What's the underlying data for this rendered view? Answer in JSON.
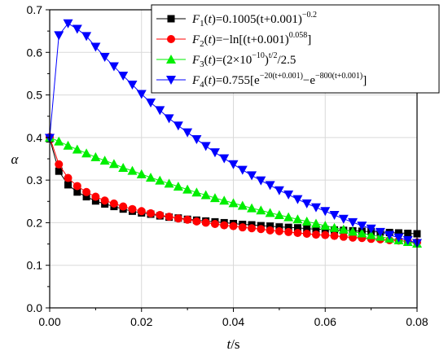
{
  "chart_data": {
    "type": "scatter",
    "xlabel": {
      "var": "t",
      "unit": "/s"
    },
    "ylabel": "α",
    "xlim": [
      0,
      0.08
    ],
    "ylim": [
      0,
      0.7
    ],
    "xticks": [
      "0.00",
      "0.02",
      "0.04",
      "0.06",
      "0.08"
    ],
    "yticks": [
      "0.0",
      "0.1",
      "0.2",
      "0.3",
      "0.4",
      "0.5",
      "0.6",
      "0.7"
    ],
    "grid": true,
    "legend_position": "top-right",
    "x": [
      0,
      0.002,
      0.004,
      0.006,
      0.008,
      0.01,
      0.012,
      0.014,
      0.016,
      0.018,
      0.02,
      0.022,
      0.024,
      0.026,
      0.028,
      0.03,
      0.032,
      0.034,
      0.036,
      0.038,
      0.04,
      0.042,
      0.044,
      0.046,
      0.048,
      0.05,
      0.052,
      0.054,
      0.056,
      0.058,
      0.06,
      0.062,
      0.064,
      0.066,
      0.068,
      0.07,
      0.072,
      0.074,
      0.076,
      0.078,
      0.08
    ],
    "series": [
      {
        "name": "F1(t)=0.1005(t+0.001)^-0.2",
        "legend_parts": {
          "fn": "F",
          "sub": "1",
          "arg": "(t)=0.1005(t+0.001)",
          "sup": "−0.2",
          "tail": ""
        },
        "color": "#000000",
        "marker": "square",
        "values": [
          0.397,
          0.321,
          0.289,
          0.272,
          0.261,
          0.251,
          0.244,
          0.238,
          0.232,
          0.227,
          0.223,
          0.22,
          0.216,
          0.213,
          0.211,
          0.208,
          0.206,
          0.204,
          0.202,
          0.2,
          0.198,
          0.196,
          0.195,
          0.193,
          0.192,
          0.19,
          0.189,
          0.188,
          0.186,
          0.185,
          0.184,
          0.183,
          0.182,
          0.181,
          0.18,
          0.179,
          0.178,
          0.177,
          0.176,
          0.175,
          0.174
        ]
      },
      {
        "name": "F2(t)=−ln[(t+0.001)^0.058]",
        "legend_parts": {
          "fn": "F",
          "sub": "2",
          "arg": "(t)=−ln[(t+0.001)",
          "sup": "0.058",
          "tail": "]"
        },
        "color": "#ff0000",
        "marker": "circle",
        "values": [
          0.401,
          0.337,
          0.305,
          0.286,
          0.272,
          0.261,
          0.252,
          0.245,
          0.238,
          0.232,
          0.227,
          0.222,
          0.218,
          0.214,
          0.21,
          0.207,
          0.203,
          0.2,
          0.197,
          0.194,
          0.192,
          0.189,
          0.187,
          0.185,
          0.182,
          0.18,
          0.178,
          0.176,
          0.174,
          0.172,
          0.171,
          0.169,
          0.167,
          0.165,
          0.164,
          0.162,
          0.161,
          0.159,
          0.158,
          0.156,
          0.154
        ]
      },
      {
        "name": "F3(t)=(2×10^-10)^t/2/2.5",
        "legend_parts": {
          "fn": "F",
          "sub": "3",
          "arg": "(t)=(2×10",
          "sup": "−10",
          "mid": ")",
          "sup2": "t/2",
          "tail": "/2.5"
        },
        "color": "#00ee00",
        "marker": "triangle-up",
        "values": [
          0.4,
          0.391,
          0.381,
          0.372,
          0.363,
          0.354,
          0.346,
          0.338,
          0.329,
          0.322,
          0.314,
          0.306,
          0.299,
          0.292,
          0.285,
          0.278,
          0.271,
          0.265,
          0.258,
          0.252,
          0.246,
          0.24,
          0.234,
          0.229,
          0.223,
          0.218,
          0.213,
          0.208,
          0.203,
          0.198,
          0.193,
          0.188,
          0.184,
          0.179,
          0.175,
          0.171,
          0.167,
          0.163,
          0.159,
          0.155,
          0.151
        ]
      },
      {
        "name": "F4(t)=0.755[e^-20(t+0.001) − e^-800(t+0.001)]",
        "legend_parts": {
          "fn": "F",
          "sub": "4",
          "arg": "(t)=0.755[e",
          "sup": "−20(t+0.001)",
          "mid": "−e",
          "sup2": "−800(t+0.001)",
          "tail": "]"
        },
        "color": "#0000ff",
        "marker": "triangle-down",
        "values": [
          0.399,
          0.64,
          0.668,
          0.655,
          0.638,
          0.613,
          0.589,
          0.567,
          0.545,
          0.524,
          0.502,
          0.482,
          0.464,
          0.445,
          0.428,
          0.412,
          0.396,
          0.38,
          0.365,
          0.351,
          0.337,
          0.324,
          0.311,
          0.299,
          0.288,
          0.276,
          0.266,
          0.255,
          0.245,
          0.236,
          0.227,
          0.218,
          0.209,
          0.201,
          0.193,
          0.186,
          0.178,
          0.171,
          0.165,
          0.159,
          0.152
        ]
      }
    ]
  }
}
